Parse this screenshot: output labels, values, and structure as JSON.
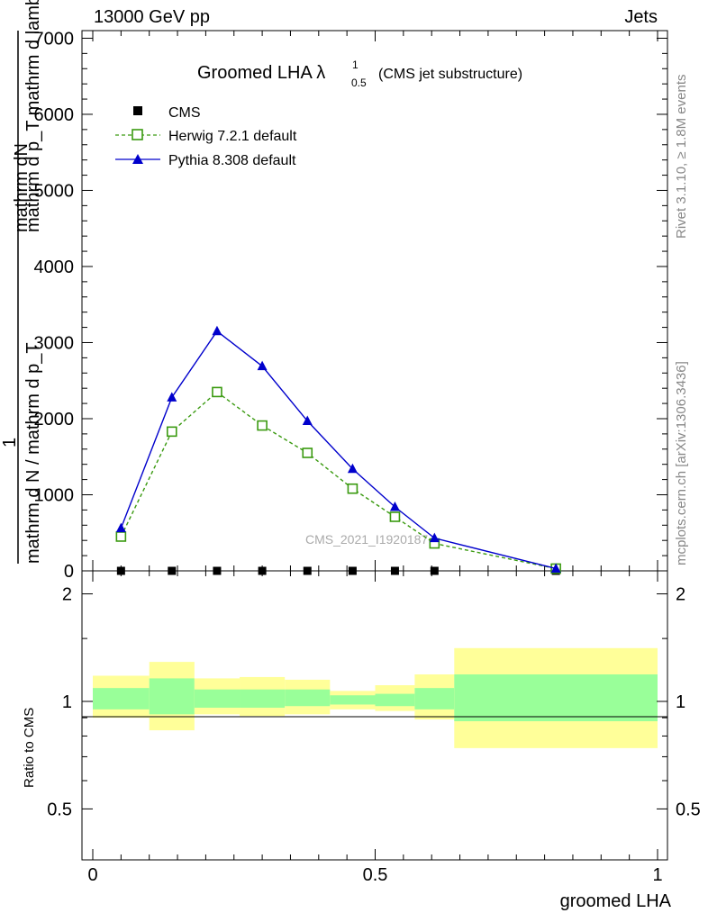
{
  "header": {
    "left": "13000 GeV pp",
    "right": "Jets"
  },
  "side_labels": {
    "rivet": "Rivet 3.1.10, ≥ 1.8M events",
    "source": "mcplots.cern.ch [arXiv:1306.3436]"
  },
  "watermark": "CMS_2021_I1920187",
  "ratio_ylabel": "Ratio to CMS",
  "colors": {
    "herwig": "#3a9a10",
    "pythia": "#0000cc",
    "band_inner": "#99ff99",
    "band_outer": "#ffff99"
  },
  "chart_data": [
    {
      "type": "line",
      "title": "Groomed LHA λ",
      "title_sup": "1",
      "title_sub": "0.5",
      "title_suffix": "(CMS jet substructure)",
      "xlabel": "groomed LHA",
      "ylabel_num": "mathrm dN",
      "ylabel_den": "mathrm d p_T mathrm d lambda",
      "ylabel_pre_1": "1",
      "ylabel_pre_num": "mathrm d N / mathrm d p_T",
      "xlim": [
        0,
        1
      ],
      "ylim": [
        0,
        7100
      ],
      "xticks": [
        "0",
        "0.5",
        "1"
      ],
      "yticks": [
        "0",
        "1000",
        "2000",
        "3000",
        "4000",
        "5000",
        "6000",
        "7000"
      ],
      "legend_placement": "top-left",
      "series": [
        {
          "name": "CMS",
          "marker": "square",
          "x": [
            0.05,
            0.14,
            0.22,
            0.3,
            0.38,
            0.46,
            0.535,
            0.605,
            0.82
          ],
          "y": [
            0,
            0,
            0,
            0,
            0,
            0,
            0,
            0,
            0
          ]
        },
        {
          "name": "Herwig 7.2.1 default",
          "marker": "open-square",
          "x": [
            0.05,
            0.14,
            0.22,
            0.3,
            0.38,
            0.46,
            0.535,
            0.605,
            0.82
          ],
          "y": [
            450,
            1830,
            2350,
            1910,
            1550,
            1080,
            710,
            360,
            30
          ]
        },
        {
          "name": "Pythia 8.308 default",
          "marker": "triangle",
          "x": [
            0.05,
            0.14,
            0.22,
            0.3,
            0.38,
            0.46,
            0.535,
            0.605,
            0.82
          ],
          "y": [
            560,
            2280,
            3150,
            2690,
            1970,
            1340,
            840,
            430,
            30
          ]
        }
      ]
    },
    {
      "type": "area",
      "ylabel": "Ratio to CMS",
      "xlabel": "groomed LHA",
      "ylim": [
        0.36,
        2.32
      ],
      "yticks": [
        "0.5",
        "1",
        "2"
      ],
      "bins": [
        {
          "x0": 0.0,
          "x1": 0.1,
          "inner": [
            0.95,
            1.09
          ],
          "outer": [
            0.9,
            1.18
          ]
        },
        {
          "x0": 0.1,
          "x1": 0.18,
          "inner": [
            0.92,
            1.16
          ],
          "outer": [
            0.83,
            1.29
          ]
        },
        {
          "x0": 0.18,
          "x1": 0.26,
          "inner": [
            0.96,
            1.08
          ],
          "outer": [
            0.92,
            1.16
          ]
        },
        {
          "x0": 0.26,
          "x1": 0.34,
          "inner": [
            0.96,
            1.08
          ],
          "outer": [
            0.91,
            1.17
          ]
        },
        {
          "x0": 0.34,
          "x1": 0.42,
          "inner": [
            0.97,
            1.08
          ],
          "outer": [
            0.92,
            1.15
          ]
        },
        {
          "x0": 0.42,
          "x1": 0.5,
          "inner": [
            0.98,
            1.04
          ],
          "outer": [
            0.95,
            1.07
          ]
        },
        {
          "x0": 0.5,
          "x1": 0.57,
          "inner": [
            0.97,
            1.05
          ],
          "outer": [
            0.94,
            1.11
          ]
        },
        {
          "x0": 0.57,
          "x1": 0.64,
          "inner": [
            0.95,
            1.09
          ],
          "outer": [
            0.89,
            1.19
          ]
        },
        {
          "x0": 0.64,
          "x1": 1.0,
          "inner": [
            0.88,
            1.19
          ],
          "outer": [
            0.74,
            1.41
          ]
        }
      ]
    }
  ]
}
